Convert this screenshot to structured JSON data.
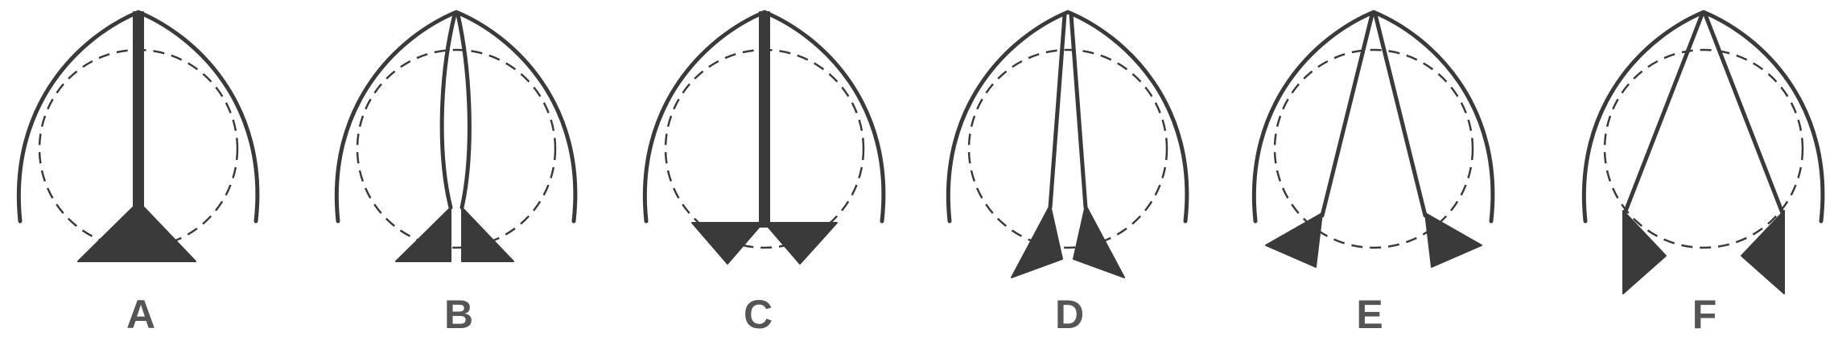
{
  "figure": {
    "panels": [
      {
        "label": "A"
      },
      {
        "label": "B"
      },
      {
        "label": "C"
      },
      {
        "label": "D"
      },
      {
        "label": "E"
      },
      {
        "label": "F"
      }
    ]
  },
  "colors": {
    "ink": "#3a3a3a",
    "label": "#555555",
    "background": "#ffffff"
  }
}
